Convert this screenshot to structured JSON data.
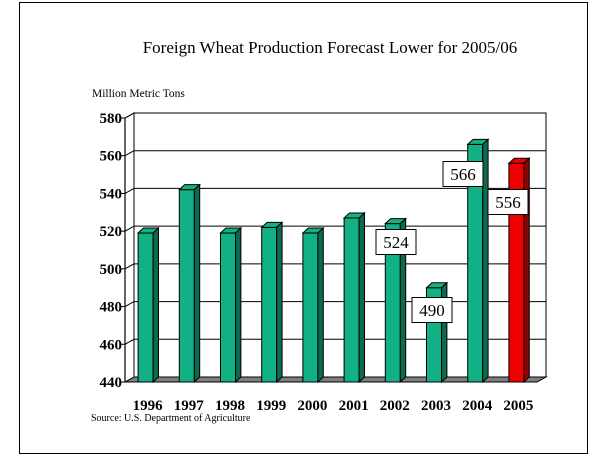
{
  "chart_data": {
    "type": "bar",
    "title": "Foreign Wheat Production Forecast Lower for 2005/06",
    "ylabel": "Million Metric Tons",
    "xlabel": "",
    "source": "Source: U.S. Department of Agriculture",
    "categories": [
      "1996",
      "1997",
      "1998",
      "1999",
      "2000",
      "2001",
      "2002",
      "2003",
      "2004",
      "2005"
    ],
    "values": [
      519,
      542,
      519,
      522,
      519,
      527,
      524,
      490,
      566,
      556
    ],
    "ylim": [
      440,
      580
    ],
    "yticks": [
      "440",
      "460",
      "480",
      "500",
      "520",
      "540",
      "560",
      "580"
    ],
    "data_labels": [
      {
        "category": "2002",
        "text": "524"
      },
      {
        "category": "2003",
        "text": "490"
      },
      {
        "category": "2004",
        "text": "566"
      },
      {
        "category": "2005",
        "text": "556"
      }
    ],
    "bar_color": "#12b085",
    "highlight_color": "#ee0000",
    "highlight_category": "2005",
    "grid": true,
    "legend": "none"
  }
}
